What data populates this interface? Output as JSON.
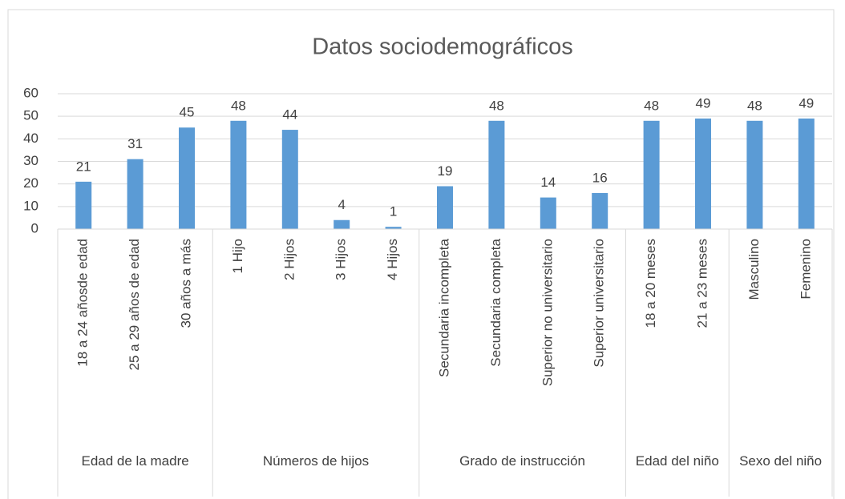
{
  "chart_data": {
    "type": "bar",
    "title": "Datos sociodemográficos",
    "groups": [
      {
        "name": "Edad de la madre",
        "categories": [
          "18 a 24 añosde edad",
          "25 a 29 años de edad",
          "30 años a más"
        ],
        "values": [
          21,
          31,
          45
        ]
      },
      {
        "name": "Números de hijos",
        "categories": [
          "1 Hijo",
          "2 Hijos",
          "3 Hijos",
          "4 Hijos"
        ],
        "values": [
          48,
          44,
          4,
          1
        ]
      },
      {
        "name": "Grado de instrucción",
        "categories": [
          "Secundaria incompleta",
          "Secundaria completa",
          "Superior no universitario",
          "Superior universitario"
        ],
        "values": [
          19,
          48,
          14,
          16
        ]
      },
      {
        "name": "Edad del niño",
        "categories": [
          "18 a 20 meses",
          "21 a 23 meses"
        ],
        "values": [
          48,
          49
        ]
      },
      {
        "name": "Sexo del niño",
        "categories": [
          "Masculino",
          "Femenino"
        ],
        "values": [
          48,
          49
        ]
      }
    ],
    "color": "#5b9bd5",
    "ylim": [
      0,
      60
    ],
    "yticks": [
      0,
      10,
      20,
      30,
      40,
      50,
      60
    ],
    "grid": true
  }
}
